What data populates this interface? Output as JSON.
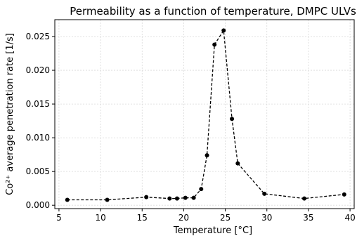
{
  "chart_data": {
    "type": "line",
    "title": "Permeability as a function of temperature, DMPC ULVs",
    "xlabel": "Temperature [°C]",
    "ylabel": "Co²⁺ average penetration rate [1/s]",
    "xlim": [
      4.5,
      40.5
    ],
    "ylim": [
      -0.0005,
      0.0275
    ],
    "xticks": [
      5,
      10,
      15,
      20,
      25,
      30,
      35,
      40
    ],
    "yticks": [
      0.0,
      0.005,
      0.01,
      0.015,
      0.02,
      0.025
    ],
    "xtick_labels": [
      "5",
      "10",
      "15",
      "20",
      "25",
      "30",
      "35",
      "40"
    ],
    "ytick_labels": [
      "0.000",
      "0.005",
      "0.010",
      "0.015",
      "0.020",
      "0.025"
    ],
    "grid": true,
    "series": [
      {
        "x": [
          6.0,
          10.8,
          15.5,
          18.3,
          19.2,
          20.2,
          21.2,
          22.1,
          22.8,
          23.7,
          24.8,
          25.8,
          26.5,
          29.7,
          34.5,
          39.3
        ],
        "y": [
          0.0008,
          0.0008,
          0.0012,
          0.001,
          0.001,
          0.0011,
          0.0011,
          0.0024,
          0.0074,
          0.0238,
          0.0259,
          0.0128,
          0.0062,
          0.0017,
          0.001,
          0.0016
        ]
      }
    ]
  }
}
